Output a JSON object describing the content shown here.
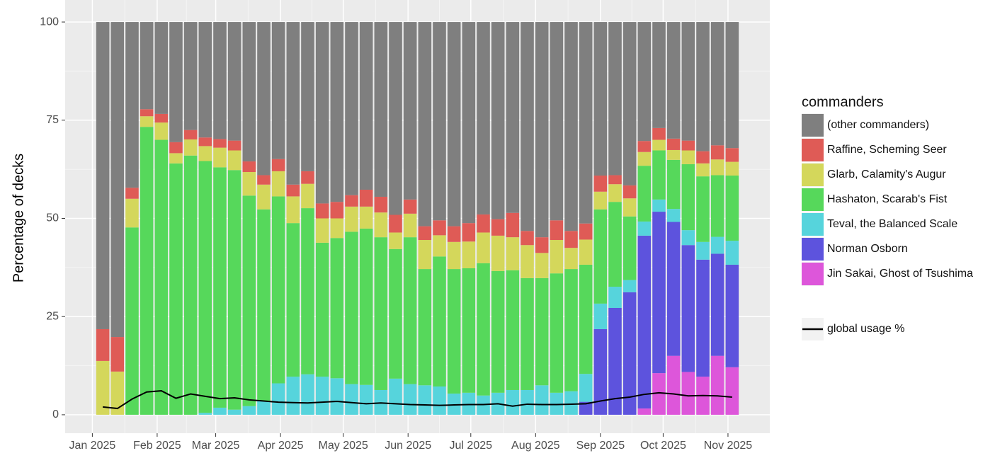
{
  "chart_data": {
    "type": "bar",
    "stacked": true,
    "ylabel": "Percentage of decks",
    "legend_title": "commanders",
    "legend_position": "right",
    "x": [
      "2025-01-06",
      "2025-01-13",
      "2025-01-20",
      "2025-01-27",
      "2025-02-03",
      "2025-02-10",
      "2025-02-17",
      "2025-02-24",
      "2025-03-03",
      "2025-03-10",
      "2025-03-17",
      "2025-03-24",
      "2025-03-31",
      "2025-04-07",
      "2025-04-14",
      "2025-04-21",
      "2025-04-28",
      "2025-05-05",
      "2025-05-12",
      "2025-05-19",
      "2025-05-26",
      "2025-06-02",
      "2025-06-09",
      "2025-06-16",
      "2025-06-23",
      "2025-06-30",
      "2025-07-07",
      "2025-07-14",
      "2025-07-21",
      "2025-07-28",
      "2025-08-04",
      "2025-08-11",
      "2025-08-18",
      "2025-08-25",
      "2025-09-01",
      "2025-09-08",
      "2025-09-15",
      "2025-09-22",
      "2025-09-29",
      "2025-10-06",
      "2025-10-13",
      "2025-10-20",
      "2025-10-27",
      "2025-11-03"
    ],
    "xlim": [
      "2024-12-19",
      "2025-11-21"
    ],
    "xticks": [
      {
        "value": "2025-01-01",
        "label": "Jan 2025"
      },
      {
        "value": "2025-02-01",
        "label": "Feb 2025"
      },
      {
        "value": "2025-03-01",
        "label": "Mar 2025"
      },
      {
        "value": "2025-04-01",
        "label": "Apr 2025"
      },
      {
        "value": "2025-05-01",
        "label": "May 2025"
      },
      {
        "value": "2025-06-01",
        "label": "Jun 2025"
      },
      {
        "value": "2025-07-01",
        "label": "Jul 2025"
      },
      {
        "value": "2025-08-01",
        "label": "Aug 2025"
      },
      {
        "value": "2025-09-01",
        "label": "Sep 2025"
      },
      {
        "value": "2025-10-01",
        "label": "Oct 2025"
      },
      {
        "value": "2025-11-01",
        "label": "Nov 2025"
      }
    ],
    "ylim": [
      -4.7,
      105.6
    ],
    "yticks": [
      0,
      25,
      50,
      75,
      100
    ],
    "grid": true,
    "series": [
      {
        "name": "(other commanders)",
        "color": "#7f7f7f",
        "values": [
          78.2,
          80.2,
          42.2,
          22.2,
          23.4,
          30.6,
          27.5,
          29.4,
          29.8,
          30.2,
          35.5,
          39,
          34.9,
          41.4,
          38,
          46.2,
          45.8,
          44.1,
          42.7,
          44.5,
          49.1,
          45.2,
          52,
          50.5,
          52,
          51.2,
          49,
          50.2,
          48.6,
          53.2,
          54.8,
          50.5,
          53.2,
          51.3,
          39.1,
          39,
          41.6,
          30.3,
          27,
          29.7,
          30.2,
          32.9,
          31.4,
          32.1
        ]
      },
      {
        "name": "Raffine, Scheming Seer",
        "color": "#df5b56",
        "values": [
          8.1,
          8.8,
          2.8,
          1.8,
          2.2,
          2.8,
          2.4,
          2.2,
          2.2,
          2.5,
          2.7,
          2.4,
          3.1,
          3,
          3.2,
          3.8,
          4.2,
          2.9,
          4.3,
          4,
          4.5,
          3.6,
          3.5,
          3.8,
          4,
          4.7,
          4.6,
          4.2,
          6.2,
          3.6,
          4,
          5,
          4.3,
          4.1,
          4.1,
          2.3,
          3.3,
          2.8,
          3,
          2.9,
          2.5,
          3.1,
          3.6,
          3.5
        ]
      },
      {
        "name": "Glarb, Calamity's Augur",
        "color": "#d4d75b",
        "values": [
          13.7,
          11,
          7.3,
          2.7,
          4.4,
          2.6,
          4.1,
          3.8,
          5,
          5,
          6,
          6.3,
          6.4,
          6.8,
          6.2,
          6.2,
          5,
          6.4,
          5.6,
          6.3,
          4.2,
          6,
          7.4,
          5.4,
          6.9,
          6.8,
          7.8,
          9,
          8.4,
          8.4,
          6.4,
          8.5,
          5.4,
          6.4,
          4.5,
          4.5,
          4.6,
          3.5,
          2.7,
          2.5,
          3.5,
          3.3,
          4,
          3.5
        ]
      },
      {
        "name": "Hashaton, Scarab's Fist",
        "color": "#56d85b",
        "values": [
          0,
          0,
          47.7,
          73.3,
          70,
          64,
          66,
          64.1,
          61.2,
          61,
          53.6,
          48.8,
          47.6,
          39.1,
          42.3,
          34.1,
          35.7,
          38.8,
          39.8,
          38.9,
          33,
          37.4,
          29.6,
          33.1,
          31.7,
          31.7,
          33.7,
          31,
          30.5,
          28.5,
          27.3,
          30.4,
          31.1,
          27.8,
          24,
          21.6,
          16.2,
          14.2,
          12.5,
          12.5,
          16.8,
          16.7,
          15.7,
          16.6
        ]
      },
      {
        "name": "Teval, the Balanced Scale",
        "color": "#56d4dc",
        "values": [
          0,
          0,
          0,
          0,
          0,
          0,
          0,
          0.5,
          1.8,
          1.3,
          2.2,
          3.5,
          8,
          9.7,
          10.3,
          9.7,
          9.3,
          7.8,
          7.6,
          6.3,
          9.2,
          7.8,
          7.5,
          7.2,
          5.4,
          5.6,
          4.9,
          5.6,
          6.3,
          6.3,
          7.5,
          5.6,
          6,
          7.1,
          6.5,
          5.4,
          3.1,
          3.6,
          3.1,
          3.3,
          3.8,
          4.5,
          4.3,
          6.1
        ]
      },
      {
        "name": "Norman Osborn",
        "color": "#5d53dd",
        "values": [
          0,
          0,
          0,
          0,
          0,
          0,
          0,
          0,
          0,
          0,
          0,
          0,
          0,
          0,
          0,
          0,
          0,
          0,
          0,
          0,
          0,
          0,
          0,
          0,
          0,
          0,
          0,
          0,
          0,
          0,
          0,
          0,
          0,
          3.3,
          21.8,
          27.2,
          31.2,
          44,
          41.1,
          34.1,
          32.3,
          29.8,
          26,
          26.1
        ]
      },
      {
        "name": "Jin Sakai, Ghost of Tsushima",
        "color": "#dd56da",
        "values": [
          0,
          0,
          0,
          0,
          0,
          0,
          0,
          0,
          0,
          0,
          0,
          0,
          0,
          0,
          0,
          0,
          0,
          0,
          0,
          0,
          0,
          0,
          0,
          0,
          0,
          0,
          0,
          0,
          0,
          0,
          0,
          0,
          0,
          0,
          0,
          0,
          0,
          1.6,
          10.6,
          15,
          10.9,
          9.7,
          15,
          12.1
        ]
      }
    ],
    "line": {
      "name": "global usage %",
      "color": "#000000",
      "values": [
        2,
        1.6,
        4,
        5.8,
        6.1,
        4.2,
        5.3,
        4.7,
        4.1,
        4.3,
        3.8,
        3.5,
        3.2,
        3.1,
        3,
        3.2,
        3.4,
        3.1,
        2.8,
        3,
        2.8,
        2.6,
        2.5,
        2.4,
        2.5,
        2.6,
        2.6,
        2.8,
        2.2,
        2.7,
        2.6,
        2.6,
        2.7,
        2.8,
        3.5,
        4.1,
        4.5,
        5.2,
        5.6,
        5.3,
        4.8,
        4.9,
        4.8,
        4.5
      ]
    }
  }
}
